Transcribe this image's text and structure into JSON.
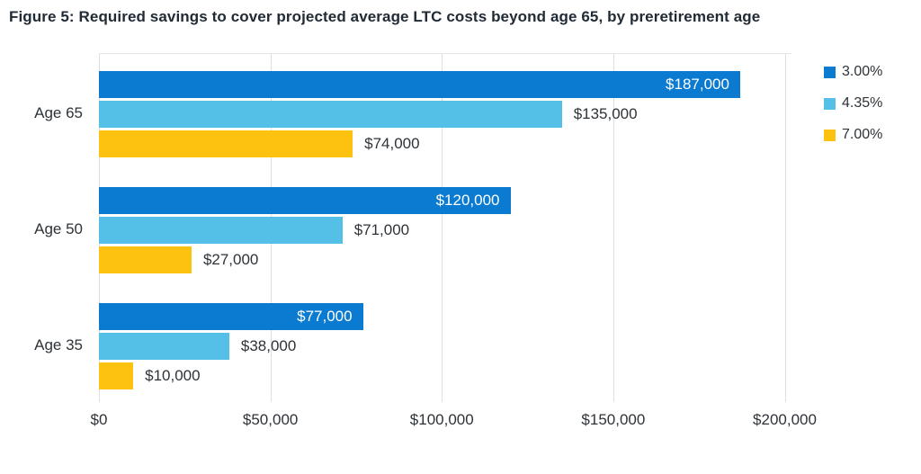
{
  "figure": {
    "title": "Figure 5: Required savings to cover projected average LTC costs beyond age 65, by preretirement age"
  },
  "chart_data": {
    "type": "bar",
    "orientation": "horizontal",
    "title": "Figure 5: Required savings to cover projected average LTC costs beyond age 65, by preretirement age",
    "categories": [
      "Age 65",
      "Age 50",
      "Age 35"
    ],
    "series": [
      {
        "name": "3.00%",
        "color": "#0b7ad1",
        "label_inside": true,
        "label_color": "#ffffff",
        "values": [
          187000,
          120000,
          77000
        ],
        "labels": [
          "$187,000",
          "$120,000",
          "$77,000"
        ]
      },
      {
        "name": "4.35%",
        "color": "#54c0e8",
        "label_inside": false,
        "label_color": "#2e3338",
        "values": [
          135000,
          71000,
          38000
        ],
        "labels": [
          "$135,000",
          "$71,000",
          "$38,000"
        ]
      },
      {
        "name": "7.00%",
        "color": "#fdc110",
        "label_inside": false,
        "label_color": "#2e3338",
        "values": [
          74000,
          27000,
          10000
        ],
        "labels": [
          "$74,000",
          "$27,000",
          "$10,000"
        ]
      }
    ],
    "x_axis": {
      "min": 0,
      "max": 200000,
      "ticks": [
        {
          "value": 0,
          "label": "$0"
        },
        {
          "value": 50000,
          "label": "$50,000"
        },
        {
          "value": 100000,
          "label": "$100,000"
        },
        {
          "value": 150000,
          "label": "$150,000"
        },
        {
          "value": 200000,
          "label": "$200,000"
        }
      ]
    },
    "legend": {
      "position": "top-right",
      "entries": [
        "3.00%",
        "4.35%",
        "7.00%"
      ]
    },
    "grid": true,
    "gridline_color": "#dde0e3"
  }
}
